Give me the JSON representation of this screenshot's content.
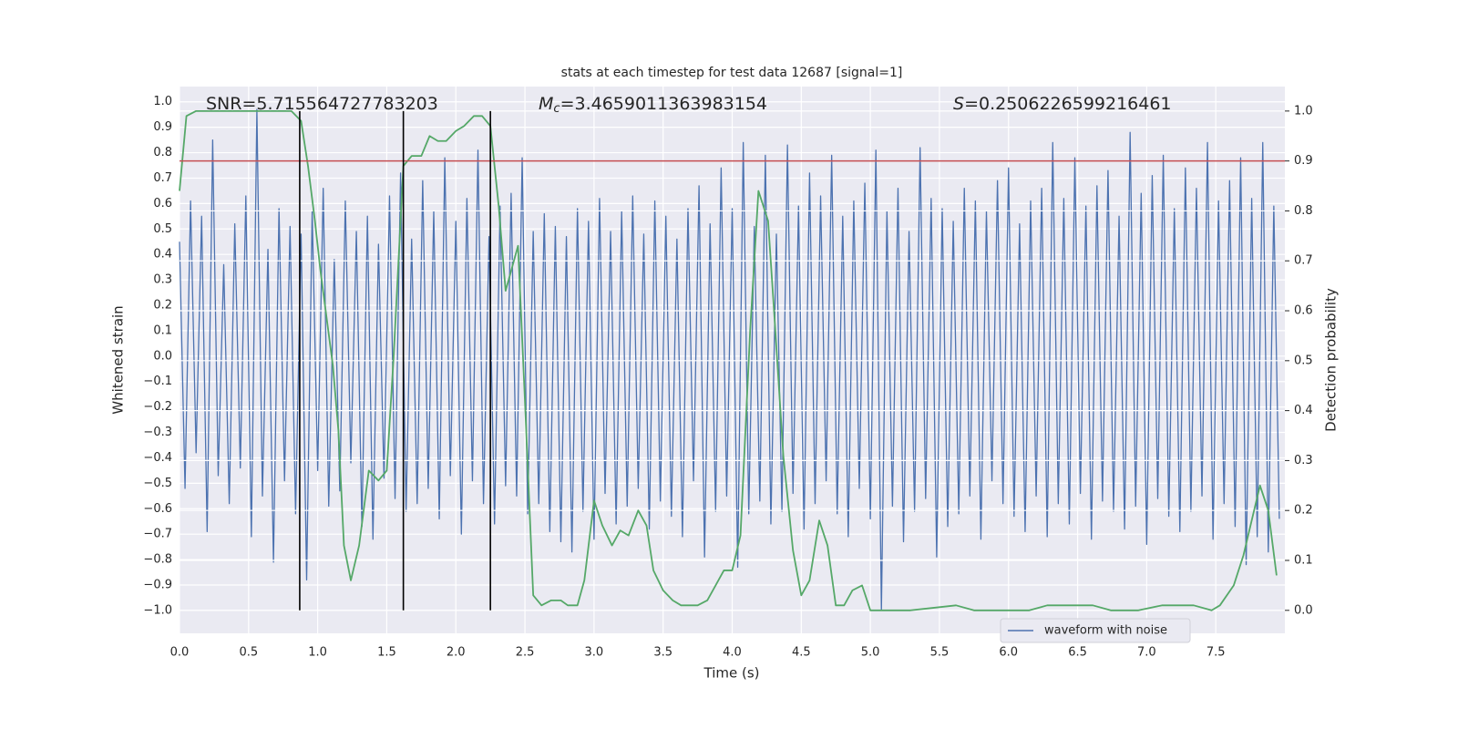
{
  "chart_data": {
    "type": "line",
    "title": "stats at each timestep for test data 12687 [signal=1]",
    "xlabel": "Time (s)",
    "ylabel": "Whitened strain",
    "y2label": "Detection probability",
    "xlim": [
      0,
      8
    ],
    "ylim": [
      -1.09,
      1.06
    ],
    "y2lim": [
      -0.046,
      1.049
    ],
    "xticks": [
      {
        "value": 0,
        "label": "0.0"
      },
      0.5,
      {
        "value": 1,
        "label": "1.0"
      },
      1.5,
      {
        "value": 2,
        "label": "2.0"
      },
      2.5,
      {
        "value": 3,
        "label": "3.0"
      },
      3.5,
      {
        "value": 4,
        "label": "4.0"
      },
      4.5,
      {
        "value": 5,
        "label": "5.0"
      },
      5.5,
      {
        "value": 6,
        "label": "6.0"
      },
      6.5,
      {
        "value": 7,
        "label": "7.0"
      },
      7.5
    ],
    "yticks": [
      {
        "value": -1,
        "label": "−1.0"
      },
      {
        "value": -0.9,
        "label": "−0.9"
      },
      {
        "value": -0.8,
        "label": "−0.8"
      },
      {
        "value": -0.7,
        "label": "−0.7"
      },
      {
        "value": -0.6,
        "label": "−0.6"
      },
      {
        "value": -0.5,
        "label": "−0.5"
      },
      {
        "value": -0.4,
        "label": "−0.4"
      },
      {
        "value": -0.3,
        "label": "−0.3"
      },
      {
        "value": -0.2,
        "label": "−0.2"
      },
      {
        "value": -0.1,
        "label": "−0.1"
      },
      {
        "value": 0,
        "label": "0.0"
      },
      0.1,
      0.2,
      0.3,
      0.4,
      0.5,
      0.6,
      0.7,
      0.8,
      0.9,
      {
        "value": 1,
        "label": "1.0"
      }
    ],
    "y2ticks": [
      {
        "value": 0,
        "label": "0.0"
      },
      0.1,
      0.2,
      0.3,
      0.4,
      0.5,
      0.6,
      0.7,
      0.8,
      0.9,
      {
        "value": 1,
        "label": "1.0"
      }
    ],
    "grid": true,
    "legend": "lower right",
    "annotations": [
      {
        "text": "SNR=5.715564727783203"
      },
      {
        "symbol": "M",
        "sub": "c",
        "text": "=3.4659011363983154"
      },
      {
        "symbol": "S",
        "text": "=0.2506226599216461"
      }
    ],
    "hlines": [
      {
        "value": 0.9,
        "axis": "y2",
        "color": "#c44e52"
      }
    ],
    "vlines": {
      "x": [
        0.87,
        1.62,
        2.25
      ],
      "y2range": [
        0,
        1
      ],
      "color": "#000000"
    },
    "series": [
      {
        "name": "waveform with noise",
        "color": "#4c72b0",
        "x": [
          0,
          0.04,
          0.08,
          0.12,
          0.16,
          0.2,
          0.24,
          0.28,
          0.32,
          0.36,
          0.4,
          0.44,
          0.48,
          0.52,
          0.56,
          0.6,
          0.64,
          0.68,
          0.72,
          0.76,
          0.8,
          0.84,
          0.88,
          0.92,
          0.96,
          1,
          1.04,
          1.08,
          1.12,
          1.16,
          1.2,
          1.24,
          1.28,
          1.32,
          1.36,
          1.4,
          1.44,
          1.48,
          1.52,
          1.56,
          1.6,
          1.64,
          1.68,
          1.72,
          1.76,
          1.8,
          1.84,
          1.88,
          1.92,
          1.96,
          2,
          2.04,
          2.08,
          2.12,
          2.16,
          2.2,
          2.24,
          2.28,
          2.32,
          2.36,
          2.4,
          2.44,
          2.48,
          2.52,
          2.56,
          2.6,
          2.64,
          2.68,
          2.72,
          2.76,
          2.8,
          2.84,
          2.88,
          2.92,
          2.96,
          3,
          3.04,
          3.08,
          3.12,
          3.16,
          3.2,
          3.24,
          3.28,
          3.32,
          3.36,
          3.4,
          3.44,
          3.48,
          3.52,
          3.56,
          3.6,
          3.64,
          3.68,
          3.72,
          3.76,
          3.8,
          3.84,
          3.88,
          3.92,
          3.96,
          4,
          4.04,
          4.08,
          4.12,
          4.16,
          4.2,
          4.24,
          4.28,
          4.32,
          4.36,
          4.4,
          4.44,
          4.48,
          4.52,
          4.56,
          4.6,
          4.64,
          4.68,
          4.72,
          4.76,
          4.8,
          4.84,
          4.88,
          4.92,
          4.96,
          5,
          5.04,
          5.08,
          5.12,
          5.16,
          5.2,
          5.24,
          5.28,
          5.32,
          5.36,
          5.4,
          5.44,
          5.48,
          5.52,
          5.56,
          5.6,
          5.64,
          5.68,
          5.72,
          5.76,
          5.8,
          5.84,
          5.88,
          5.92,
          5.96,
          6,
          6.04,
          6.08,
          6.12,
          6.16,
          6.2,
          6.24,
          6.28,
          6.32,
          6.36,
          6.4,
          6.44,
          6.48,
          6.52,
          6.56,
          6.6,
          6.64,
          6.68,
          6.72,
          6.76,
          6.8,
          6.84,
          6.88,
          6.92,
          6.96,
          7,
          7.04,
          7.08,
          7.12,
          7.16,
          7.2,
          7.24,
          7.28,
          7.32,
          7.36,
          7.4,
          7.44,
          7.48,
          7.52,
          7.56,
          7.6,
          7.64,
          7.68,
          7.72,
          7.76,
          7.8,
          7.84,
          7.88,
          7.92,
          7.96
        ],
        "values": [
          0.45,
          -0.52,
          0.61,
          -0.38,
          0.55,
          -0.69,
          0.85,
          -0.47,
          0.36,
          -0.58,
          0.52,
          -0.44,
          0.63,
          -0.71,
          0.97,
          -0.55,
          0.42,
          -0.81,
          0.58,
          -0.49,
          0.51,
          -0.62,
          0.48,
          -0.88,
          0.57,
          -0.45,
          0.66,
          -0.59,
          0.38,
          -0.53,
          0.61,
          -0.42,
          0.49,
          -0.67,
          0.55,
          -0.72,
          0.44,
          -0.48,
          0.63,
          -0.56,
          0.72,
          -0.61,
          0.46,
          -0.58,
          0.69,
          -0.52,
          0.57,
          -0.64,
          0.78,
          -0.47,
          0.53,
          -0.7,
          0.62,
          -0.49,
          0.81,
          -0.58,
          0.47,
          -0.66,
          0.59,
          -0.51,
          0.64,
          -0.55,
          0.78,
          -0.62,
          0.49,
          -0.58,
          0.56,
          -0.69,
          0.51,
          -0.73,
          0.47,
          -0.77,
          0.58,
          -0.61,
          0.53,
          -0.72,
          0.62,
          -0.54,
          0.49,
          -0.66,
          0.57,
          -0.59,
          0.63,
          -0.52,
          0.48,
          -0.68,
          0.61,
          -0.57,
          0.55,
          -0.63,
          0.46,
          -0.71,
          0.58,
          -0.49,
          0.67,
          -0.79,
          0.52,
          -0.61,
          0.74,
          -0.55,
          0.58,
          -0.83,
          0.84,
          -0.62,
          0.51,
          -0.57,
          0.79,
          -0.66,
          0.48,
          -0.61,
          0.83,
          -0.54,
          0.59,
          -0.68,
          0.72,
          -0.58,
          0.63,
          -0.49,
          0.79,
          -0.62,
          0.55,
          -0.71,
          0.61,
          -0.52,
          0.68,
          -0.64,
          0.81,
          -1.0,
          0.57,
          -0.59,
          0.66,
          -0.73,
          0.49,
          -0.61,
          0.82,
          -0.56,
          0.62,
          -0.79,
          0.58,
          -0.67,
          0.53,
          -0.62,
          0.66,
          -0.55,
          0.61,
          -0.72,
          0.57,
          -0.49,
          0.69,
          -0.58,
          0.74,
          -0.63,
          0.52,
          -0.69,
          0.61,
          -0.55,
          0.66,
          -0.71,
          0.84,
          -0.58,
          0.62,
          -0.66,
          0.78,
          -0.54,
          0.59,
          -0.72,
          0.67,
          -0.57,
          0.73,
          -0.61,
          0.55,
          -0.68,
          0.88,
          -0.59,
          0.64,
          -0.74,
          0.71,
          -0.56,
          0.79,
          -0.63,
          0.58,
          -0.69,
          0.74,
          -0.61,
          0.66,
          -0.55,
          0.84,
          -0.72,
          0.61,
          -0.58,
          0.69,
          -0.67,
          0.78,
          -0.82,
          0.62,
          -0.71,
          0.84,
          -0.77,
          0.59,
          -0.64
        ]
      },
      {
        "color": "#55a868",
        "axis": "y2",
        "x": [
          0,
          0.05,
          0.12,
          0.35,
          0.81,
          0.88,
          0.93,
          0.98,
          1.02,
          1.11,
          1.15,
          1.19,
          1.24,
          1.3,
          1.37,
          1.44,
          1.5,
          1.55,
          1.62,
          1.68,
          1.75,
          1.81,
          1.87,
          1.93,
          2,
          2.06,
          2.13,
          2.19,
          2.25,
          2.31,
          2.36,
          2.41,
          2.45,
          2.5,
          2.56,
          2.62,
          2.69,
          2.76,
          2.81,
          2.88,
          2.93,
          3,
          3.06,
          3.13,
          3.19,
          3.25,
          3.32,
          3.38,
          3.43,
          3.5,
          3.57,
          3.63,
          3.69,
          3.75,
          3.82,
          3.88,
          3.94,
          4,
          4.06,
          4.13,
          4.19,
          4.26,
          4.31,
          4.37,
          4.44,
          4.5,
          4.56,
          4.63,
          4.69,
          4.75,
          4.81,
          4.87,
          4.94,
          5,
          5.09,
          5.29,
          5.62,
          5.75,
          6.15,
          6.28,
          6.41,
          6.51,
          6.61,
          6.74,
          6.94,
          7.11,
          7.24,
          7.34,
          7.47,
          7.53,
          7.63,
          7.7,
          7.82,
          7.88,
          7.94
        ],
        "values": [
          0.84,
          0.99,
          1,
          1,
          1,
          0.98,
          0.89,
          0.78,
          0.68,
          0.49,
          0.36,
          0.13,
          0.06,
          0.13,
          0.28,
          0.26,
          0.28,
          0.51,
          0.89,
          0.91,
          0.91,
          0.95,
          0.94,
          0.94,
          0.96,
          0.97,
          0.99,
          0.99,
          0.97,
          0.81,
          0.64,
          0.69,
          0.73,
          0.42,
          0.03,
          0.01,
          0.02,
          0.02,
          0.01,
          0.01,
          0.06,
          0.22,
          0.17,
          0.13,
          0.16,
          0.15,
          0.2,
          0.17,
          0.08,
          0.04,
          0.02,
          0.01,
          0.01,
          0.01,
          0.02,
          0.05,
          0.08,
          0.08,
          0.15,
          0.56,
          0.84,
          0.78,
          0.57,
          0.31,
          0.12,
          0.03,
          0.06,
          0.18,
          0.13,
          0.01,
          0.01,
          0.04,
          0.05,
          0,
          0,
          0,
          0.01,
          0,
          0,
          0.01,
          0.01,
          0.01,
          0.01,
          0,
          0,
          0.01,
          0.01,
          0.01,
          0,
          0.01,
          0.05,
          0.11,
          0.25,
          0.2,
          0.07
        ]
      }
    ]
  }
}
